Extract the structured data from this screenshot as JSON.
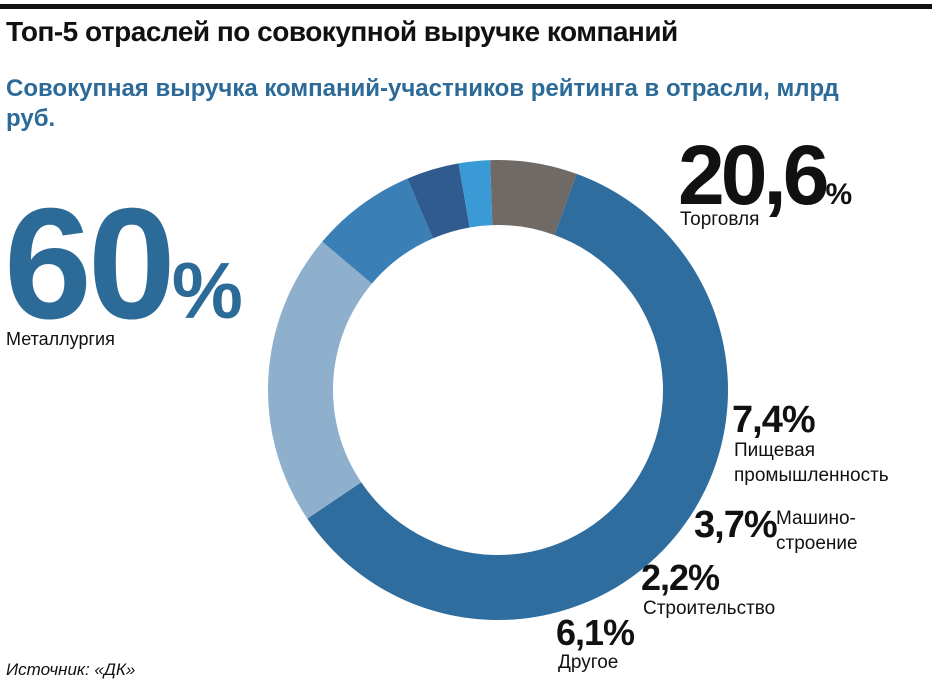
{
  "chart_data": {
    "type": "donut",
    "title": "Топ-5 отраслей по совокупной выручке компаний",
    "subtitle": "Совокупная выручка компаний-участников рейтинга в отрасли, млрд руб.",
    "source": "Источник: «ДК»",
    "categories": [
      "Металлургия",
      "Торговля",
      "Пищевая\nпромышленность",
      "Машино-\nстроение",
      "Строительство",
      "Другое"
    ],
    "values": [
      60,
      20.6,
      7.4,
      3.7,
      2.2,
      6.1
    ],
    "value_labels": [
      "60%",
      "20,6%",
      "7,4%",
      "3,7%",
      "2,2%",
      "6,1%"
    ],
    "colors": [
      "#2f6d9e",
      "#8fb0cc",
      "#3a80b6",
      "#2f5b8f",
      "#3a9ad6",
      "#6f6a66"
    ]
  }
}
